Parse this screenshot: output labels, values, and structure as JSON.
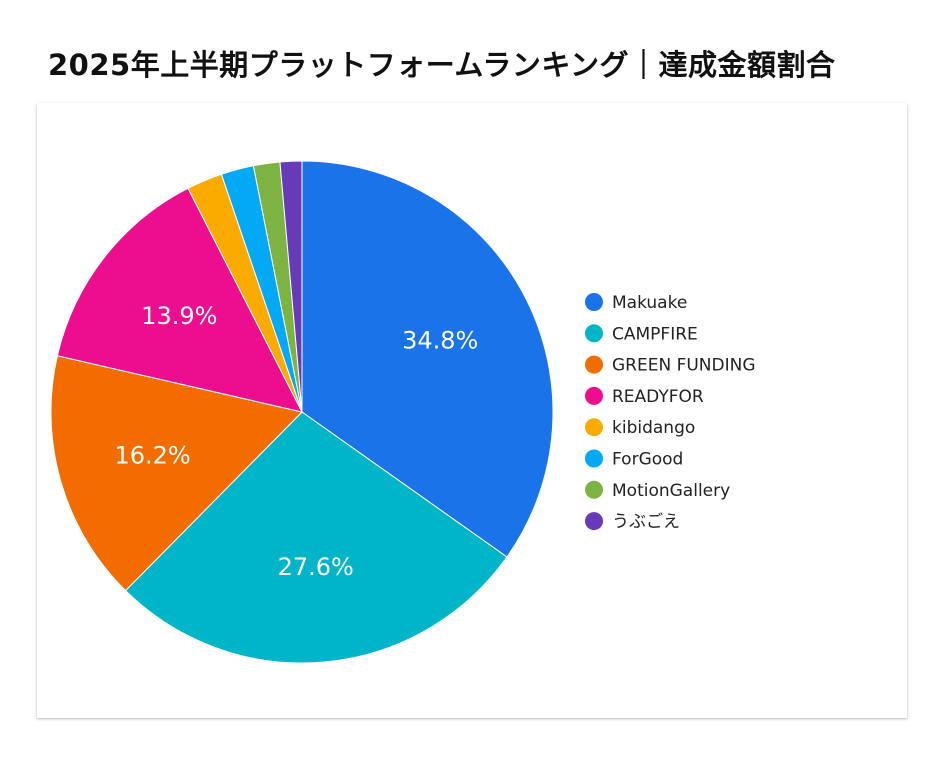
{
  "title": "2025年上半期プラットフォームランキング｜達成金額割合",
  "chart_data": {
    "type": "pie",
    "title": "2025年上半期プラットフォームランキング｜達成金額割合",
    "legend_position": "right",
    "slices": [
      {
        "name": "Makuake",
        "value": 34.8,
        "label": "34.8%",
        "color": "#1a73e8"
      },
      {
        "name": "CAMPFIRE",
        "value": 27.6,
        "label": "27.6%",
        "color": "#00b5c8"
      },
      {
        "name": "GREEN FUNDING",
        "value": 16.2,
        "label": "16.2%",
        "color": "#f36c00"
      },
      {
        "name": "READYFOR",
        "value": 13.9,
        "label": "13.9%",
        "color": "#ec0e8f"
      },
      {
        "name": "kibidango",
        "value": 2.3,
        "label": "",
        "color": "#fbab00"
      },
      {
        "name": "ForGood",
        "value": 2.1,
        "label": "",
        "color": "#03a9f4"
      },
      {
        "name": "MotionGallery",
        "value": 1.7,
        "label": "",
        "color": "#7cb342"
      },
      {
        "name": "うぶごえ",
        "value": 1.4,
        "label": "",
        "color": "#673ab7"
      }
    ]
  }
}
